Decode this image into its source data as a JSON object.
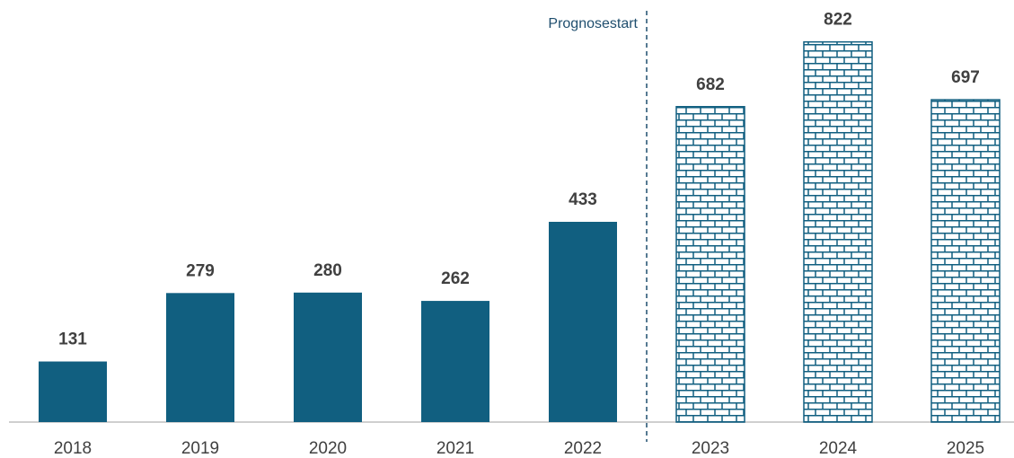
{
  "chart_data": {
    "type": "bar",
    "categories": [
      "2018",
      "2019",
      "2020",
      "2021",
      "2022",
      "2023",
      "2024",
      "2025"
    ],
    "values": [
      131,
      279,
      280,
      262,
      433,
      682,
      822,
      697
    ],
    "color": "#115f80",
    "patterns": [
      "solid",
      "solid",
      "solid",
      "solid",
      "solid",
      "brick",
      "brick",
      "brick"
    ],
    "annotation": "Prognosestart",
    "ylim": [
      0,
      900
    ],
    "grid": false
  }
}
